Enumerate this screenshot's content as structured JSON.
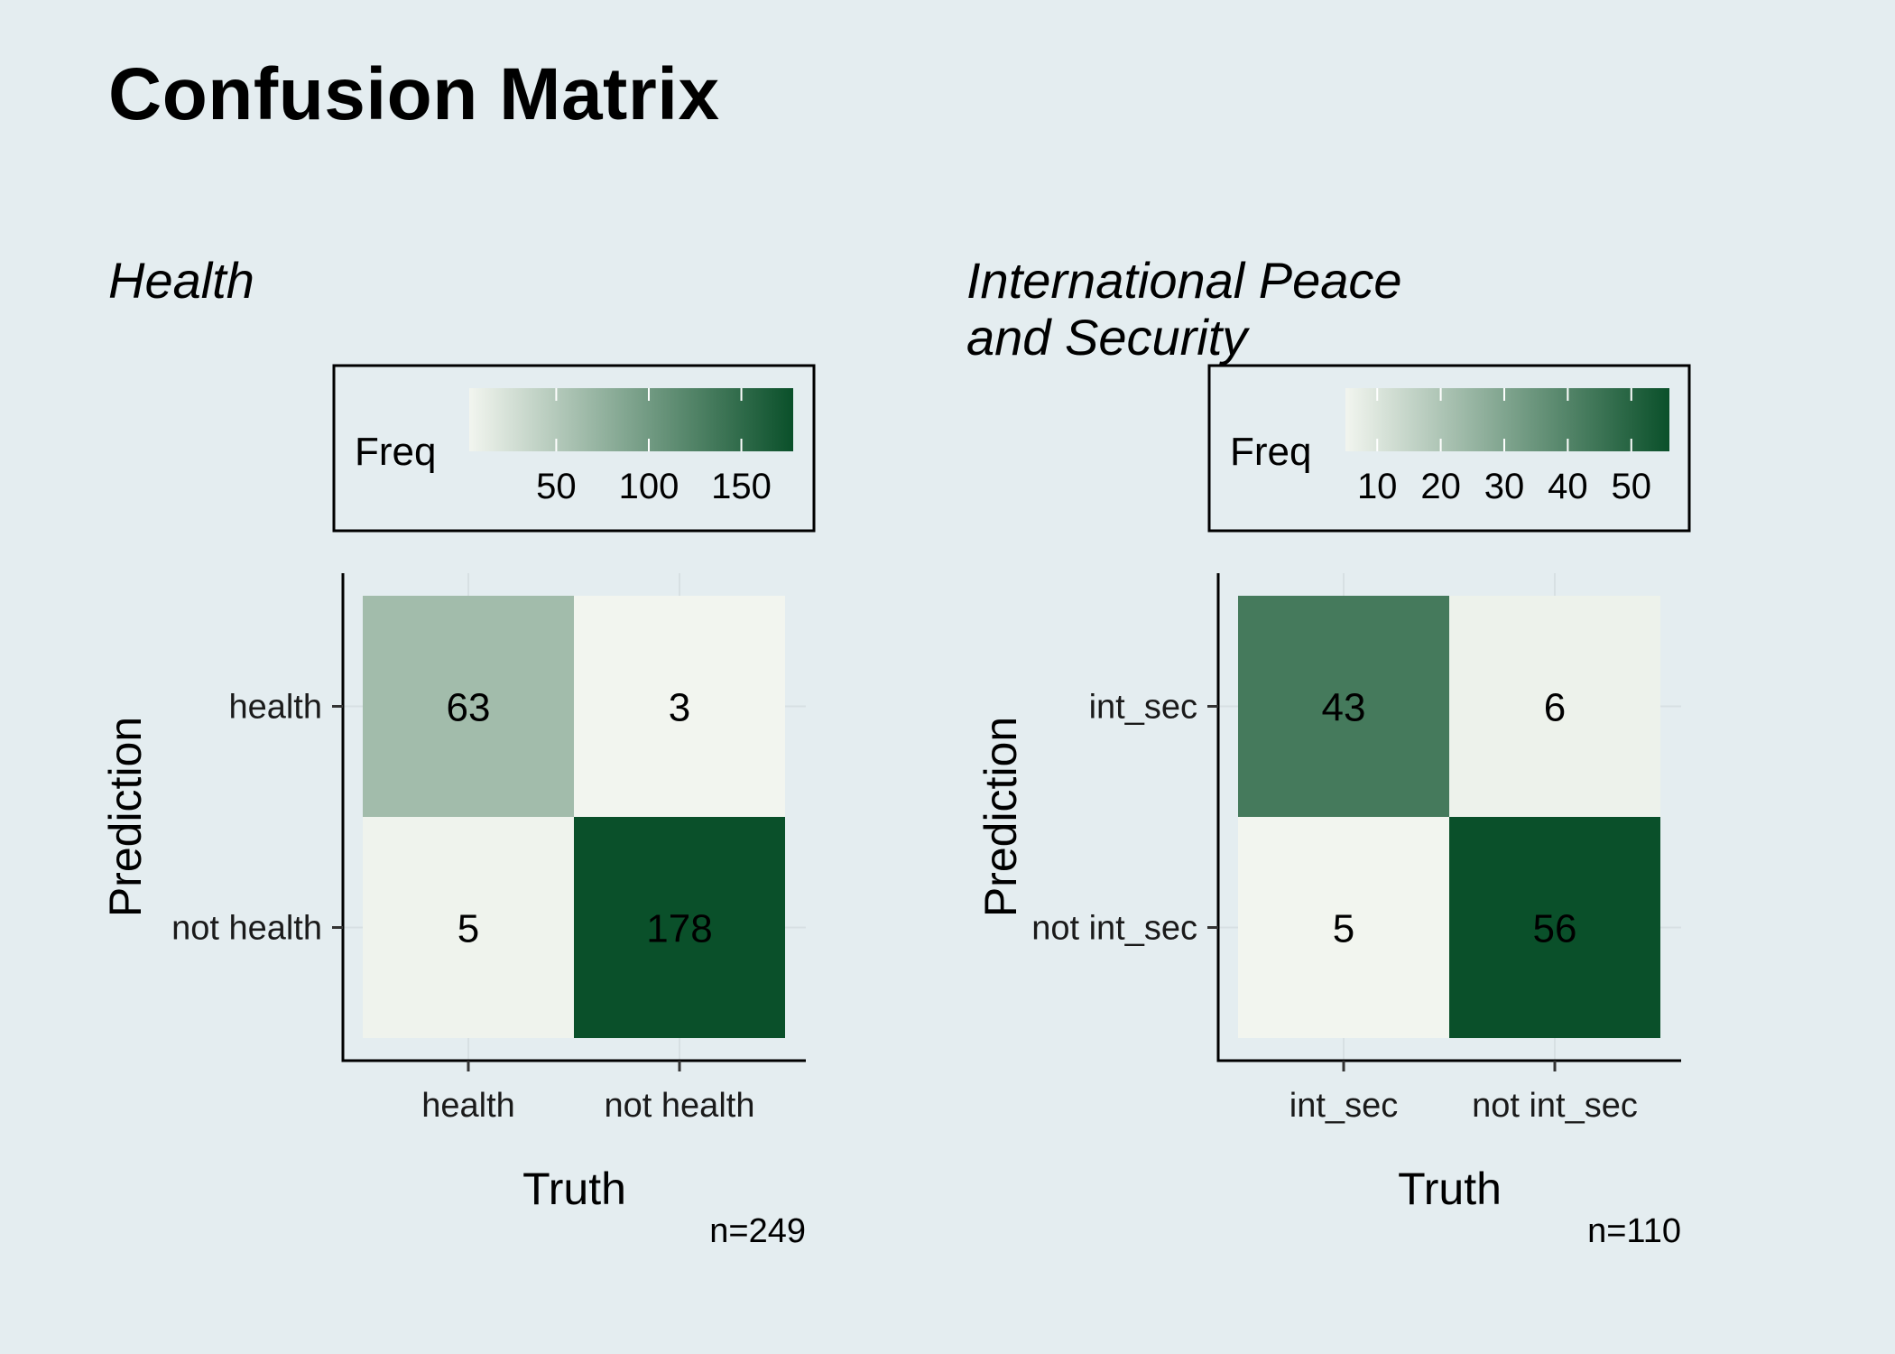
{
  "title": "Confusion Matrix",
  "colors": {
    "background": "#e4edf0",
    "low": "#f2f5ef",
    "high": "#0a502a"
  },
  "chart_data": [
    {
      "type": "heatmap",
      "subtitle": "Health",
      "xlabel": "Truth",
      "ylabel": "Prediction",
      "x_categories": [
        "health",
        "not health"
      ],
      "y_categories": [
        "health",
        "not health"
      ],
      "cells": [
        {
          "truth": "health",
          "prediction": "health",
          "value": 63
        },
        {
          "truth": "not health",
          "prediction": "health",
          "value": 3
        },
        {
          "truth": "health",
          "prediction": "not health",
          "value": 5
        },
        {
          "truth": "not health",
          "prediction": "not health",
          "value": 178
        }
      ],
      "legend_title": "Freq",
      "legend_ticks": [
        50,
        100,
        150
      ],
      "legend_range": [
        3,
        178
      ],
      "legend_position": "top",
      "caption": "n=249",
      "grid": true
    },
    {
      "type": "heatmap",
      "subtitle": "International Peace and Security",
      "xlabel": "Truth",
      "ylabel": "Prediction",
      "x_categories": [
        "int_sec",
        "not int_sec"
      ],
      "y_categories": [
        "int_sec",
        "not int_sec"
      ],
      "cells": [
        {
          "truth": "int_sec",
          "prediction": "int_sec",
          "value": 43
        },
        {
          "truth": "not int_sec",
          "prediction": "int_sec",
          "value": 6
        },
        {
          "truth": "int_sec",
          "prediction": "not int_sec",
          "value": 5
        },
        {
          "truth": "not int_sec",
          "prediction": "not int_sec",
          "value": 56
        }
      ],
      "legend_title": "Freq",
      "legend_ticks": [
        10,
        20,
        30,
        40,
        50
      ],
      "legend_range": [
        5,
        56
      ],
      "legend_position": "top",
      "caption": "n=110",
      "grid": true
    }
  ]
}
